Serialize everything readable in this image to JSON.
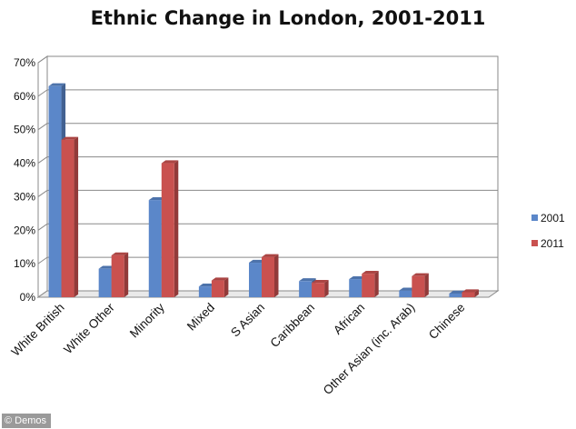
{
  "chart_data": {
    "type": "bar",
    "title": "Ethnic Change in London, 2001-2011",
    "categories": [
      "White British",
      "White Other",
      "Minority",
      "Mixed",
      "S Asian",
      "Caribbean",
      "African",
      "Other Asian (inc. Arab)",
      "Chinese"
    ],
    "series": [
      {
        "name": "2001",
        "color": "#5b87c9",
        "values": [
          63,
          8.5,
          29,
          3.2,
          10.3,
          4.8,
          5.4,
          2,
          1.1
        ]
      },
      {
        "name": "2011",
        "color": "#c9514f",
        "values": [
          47,
          12.5,
          40,
          5,
          12,
          4.3,
          7,
          6.3,
          1.5
        ]
      }
    ],
    "y_ticks": [
      "0%",
      "10%",
      "20%",
      "30%",
      "40%",
      "50%",
      "60%",
      "70%"
    ],
    "ylim": [
      0,
      70
    ],
    "grid": true,
    "legend_position": "right",
    "style": "3d-clustered-column"
  },
  "credit": "© Demos"
}
